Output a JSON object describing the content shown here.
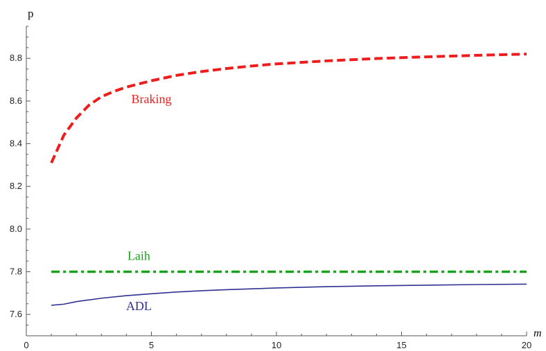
{
  "chart_data": {
    "type": "line",
    "xlabel": "m",
    "ylabel": "p",
    "xlim": [
      0,
      20
    ],
    "ylim": [
      7.5,
      8.95
    ],
    "x_ticks": [
      0,
      5,
      10,
      15,
      20
    ],
    "y_ticks": [
      7.6,
      7.8,
      8.0,
      8.2,
      8.4,
      8.6,
      8.8
    ],
    "x_tick_labels": [
      "0",
      "5",
      "10",
      "15",
      "20"
    ],
    "y_tick_labels": [
      "7.6",
      "7.8",
      "8.0",
      "8.2",
      "8.4",
      "8.6",
      "8.8"
    ],
    "grid": false,
    "series": [
      {
        "name": "Braking",
        "color": "#ee1c1c",
        "style": "dashed",
        "label_at": [
          5,
          8.59
        ],
        "x": [
          1,
          1.5,
          2,
          2.5,
          3,
          3.5,
          4,
          5,
          6,
          7,
          8,
          9,
          10,
          12,
          14,
          16,
          18,
          20
        ],
        "y": [
          8.31,
          8.44,
          8.52,
          8.58,
          8.62,
          8.645,
          8.665,
          8.695,
          8.72,
          8.738,
          8.752,
          8.764,
          8.774,
          8.788,
          8.799,
          8.807,
          8.814,
          8.82
        ]
      },
      {
        "name": "Laih",
        "color": "#1aa31a",
        "style": "dashdot",
        "label_at": [
          4.5,
          7.855
        ],
        "x": [
          1,
          20
        ],
        "y": [
          7.8,
          7.8
        ]
      },
      {
        "name": "ADL",
        "color": "#2e3192",
        "style": "solid",
        "label_at": [
          4.5,
          7.62
        ],
        "x": [
          1,
          1.5,
          2,
          3,
          4,
          5,
          6,
          7,
          8,
          10,
          12,
          14,
          16,
          18,
          20
        ],
        "y": [
          7.643,
          7.648,
          7.66,
          7.676,
          7.688,
          7.697,
          7.705,
          7.711,
          7.716,
          7.724,
          7.73,
          7.734,
          7.737,
          7.74,
          7.742
        ]
      }
    ]
  }
}
